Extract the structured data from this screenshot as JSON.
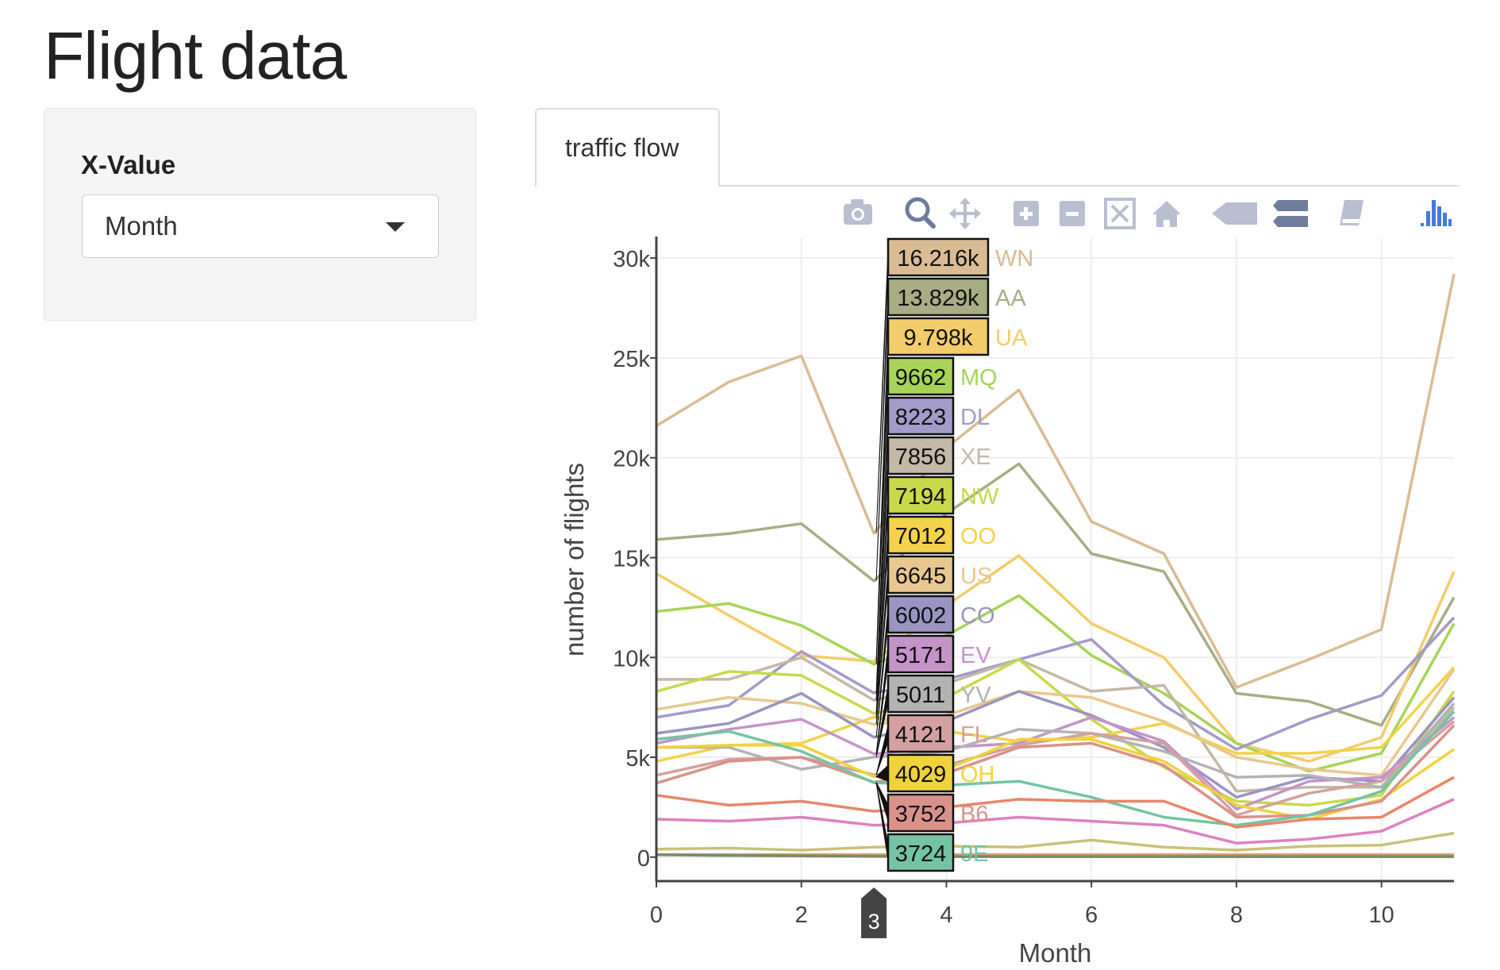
{
  "page": {
    "title": "Flight data"
  },
  "sidebar": {
    "label": "X-Value",
    "select_value": "Month"
  },
  "tabs": [
    {
      "label": "traffic flow"
    }
  ],
  "modebar": [
    {
      "icon": "camera-icon"
    },
    {
      "icon": "zoom-icon"
    },
    {
      "icon": "pan-icon"
    },
    {
      "icon": "zoom-in-icon"
    },
    {
      "icon": "zoom-out-icon"
    },
    {
      "icon": "autoscale-icon"
    },
    {
      "icon": "home-icon"
    },
    {
      "icon": "hover-closest-icon"
    },
    {
      "icon": "hover-compare-icon"
    },
    {
      "icon": "spikelines-icon"
    },
    {
      "icon": "plotly-logo-icon"
    }
  ],
  "chart_data": {
    "type": "line",
    "xlabel": "Month",
    "ylabel": "number of flights",
    "xlim": [
      0,
      11
    ],
    "ylim": [
      -1200,
      31000
    ],
    "xticks": [
      0,
      2,
      4,
      6,
      8,
      10
    ],
    "yticks": [
      0,
      5000,
      10000,
      15000,
      20000,
      25000,
      30000
    ],
    "ytick_labels": [
      "0",
      "5k",
      "10k",
      "15k",
      "20k",
      "25k",
      "30k"
    ],
    "grid": true,
    "hover_x": 3,
    "hover_x_label": "3",
    "x": [
      0,
      1,
      2,
      3,
      4,
      5,
      6,
      7,
      8,
      9,
      10,
      11
    ],
    "series": [
      {
        "name": "WN",
        "hover_label": "16.216k",
        "color": "#d9bc94",
        "values": [
          21600,
          23800,
          25100,
          16216,
          20500,
          23400,
          16800,
          15200,
          8500,
          9900,
          11400,
          29200
        ]
      },
      {
        "name": "AA",
        "hover_label": "13.829k",
        "color": "#a8ad84",
        "values": [
          15900,
          16200,
          16700,
          13829,
          17200,
          19700,
          15200,
          14300,
          8200,
          7800,
          6600,
          13000
        ]
      },
      {
        "name": "UA",
        "hover_label": "9.798k",
        "color": "#f2cd6a",
        "values": [
          14200,
          12100,
          10100,
          9798,
          12600,
          15100,
          11700,
          10000,
          5700,
          4800,
          6000,
          14300
        ]
      },
      {
        "name": "MQ",
        "hover_label": "9662",
        "color": "#a7d458",
        "values": [
          12300,
          12700,
          11600,
          9662,
          11100,
          13100,
          10100,
          8200,
          5700,
          4300,
          5200,
          11700
        ]
      },
      {
        "name": "DL",
        "hover_label": "8223",
        "color": "#a39bc9",
        "values": [
          7000,
          7600,
          10300,
          8223,
          8900,
          9900,
          10900,
          7600,
          5400,
          6900,
          8100,
          12000
        ]
      },
      {
        "name": "XE",
        "hover_label": "7856",
        "color": "#c4b8a6",
        "values": [
          8900,
          8900,
          10000,
          7856,
          8700,
          9900,
          8300,
          8600,
          3300,
          3500,
          3500,
          7500
        ]
      },
      {
        "name": "NW",
        "hover_label": "7194",
        "color": "#c9d94a",
        "values": [
          8300,
          9300,
          9100,
          7194,
          8000,
          9900,
          6900,
          4500,
          2800,
          2600,
          3100,
          8300
        ]
      },
      {
        "name": "OO",
        "hover_label": "7012",
        "color": "#f3d24c",
        "values": [
          4800,
          5600,
          5700,
          7012,
          6300,
          5800,
          6000,
          6700,
          5200,
          5200,
          5500,
          9500
        ]
      },
      {
        "name": "US",
        "hover_label": "6645",
        "color": "#e8c88e",
        "values": [
          7400,
          8000,
          7700,
          6645,
          7100,
          8300,
          8000,
          6800,
          5000,
          4400,
          4100,
          9400
        ]
      },
      {
        "name": "CO",
        "hover_label": "6002",
        "color": "#9a94c2",
        "values": [
          6200,
          6700,
          8200,
          6002,
          6800,
          8300,
          7100,
          5500,
          3000,
          4000,
          3800,
          8000
        ]
      },
      {
        "name": "EV",
        "hover_label": "5171",
        "color": "#c494c9",
        "values": [
          5700,
          6400,
          6900,
          5171,
          5500,
          5700,
          7000,
          5800,
          2400,
          3800,
          4000,
          7000
        ]
      },
      {
        "name": "YV",
        "hover_label": "5011",
        "color": "#b3b3b3",
        "values": [
          5500,
          5500,
          4400,
          5011,
          5300,
          6400,
          6200,
          5300,
          4000,
          4100,
          3500,
          7700
        ]
      },
      {
        "name": "FL",
        "hover_label": "4121",
        "color": "#d4a0a0",
        "values": [
          4100,
          4900,
          5000,
          4121,
          4600,
          5600,
          6200,
          5700,
          2100,
          3200,
          3800,
          6800
        ]
      },
      {
        "name": "OH",
        "hover_label": "4029",
        "color": "#f0d33c",
        "values": [
          5500,
          5600,
          5600,
          4029,
          4400,
          5900,
          5900,
          4800,
          2600,
          1900,
          2900,
          5400
        ]
      },
      {
        "name": "B6",
        "hover_label": "3752",
        "color": "#d9928a",
        "values": [
          3700,
          4800,
          5000,
          3752,
          4200,
          5500,
          5700,
          4600,
          2000,
          2100,
          2800,
          6600
        ]
      },
      {
        "name": "9E",
        "hover_label": "3724",
        "color": "#74c4a4",
        "values": [
          5900,
          6300,
          5300,
          3724,
          3600,
          3800,
          3000,
          2000,
          1600,
          2100,
          3300,
          7300
        ]
      },
      {
        "name": "",
        "hover_label": "",
        "color": "#e8866a",
        "values": [
          3100,
          2600,
          2800,
          2300,
          2500,
          2900,
          2800,
          2800,
          1500,
          1900,
          2000,
          4000
        ]
      },
      {
        "name": "",
        "hover_label": "",
        "color": "#dd82c0",
        "values": [
          1900,
          1800,
          2000,
          1600,
          1700,
          2000,
          1800,
          1600,
          700,
          900,
          1300,
          2900
        ]
      },
      {
        "name": "",
        "hover_label": "",
        "color": "#c7c27a",
        "values": [
          400,
          450,
          350,
          500,
          550,
          500,
          850,
          500,
          350,
          550,
          600,
          1200
        ]
      },
      {
        "name": "",
        "hover_label": "",
        "color": "#d9a070",
        "values": [
          120,
          120,
          120,
          120,
          120,
          120,
          120,
          120,
          120,
          120,
          120,
          120
        ]
      },
      {
        "name": "",
        "hover_label": "",
        "color": "#7a8a6a",
        "values": [
          120,
          80,
          60,
          40,
          30,
          30,
          30,
          30,
          30,
          30,
          30,
          30
        ]
      }
    ]
  }
}
